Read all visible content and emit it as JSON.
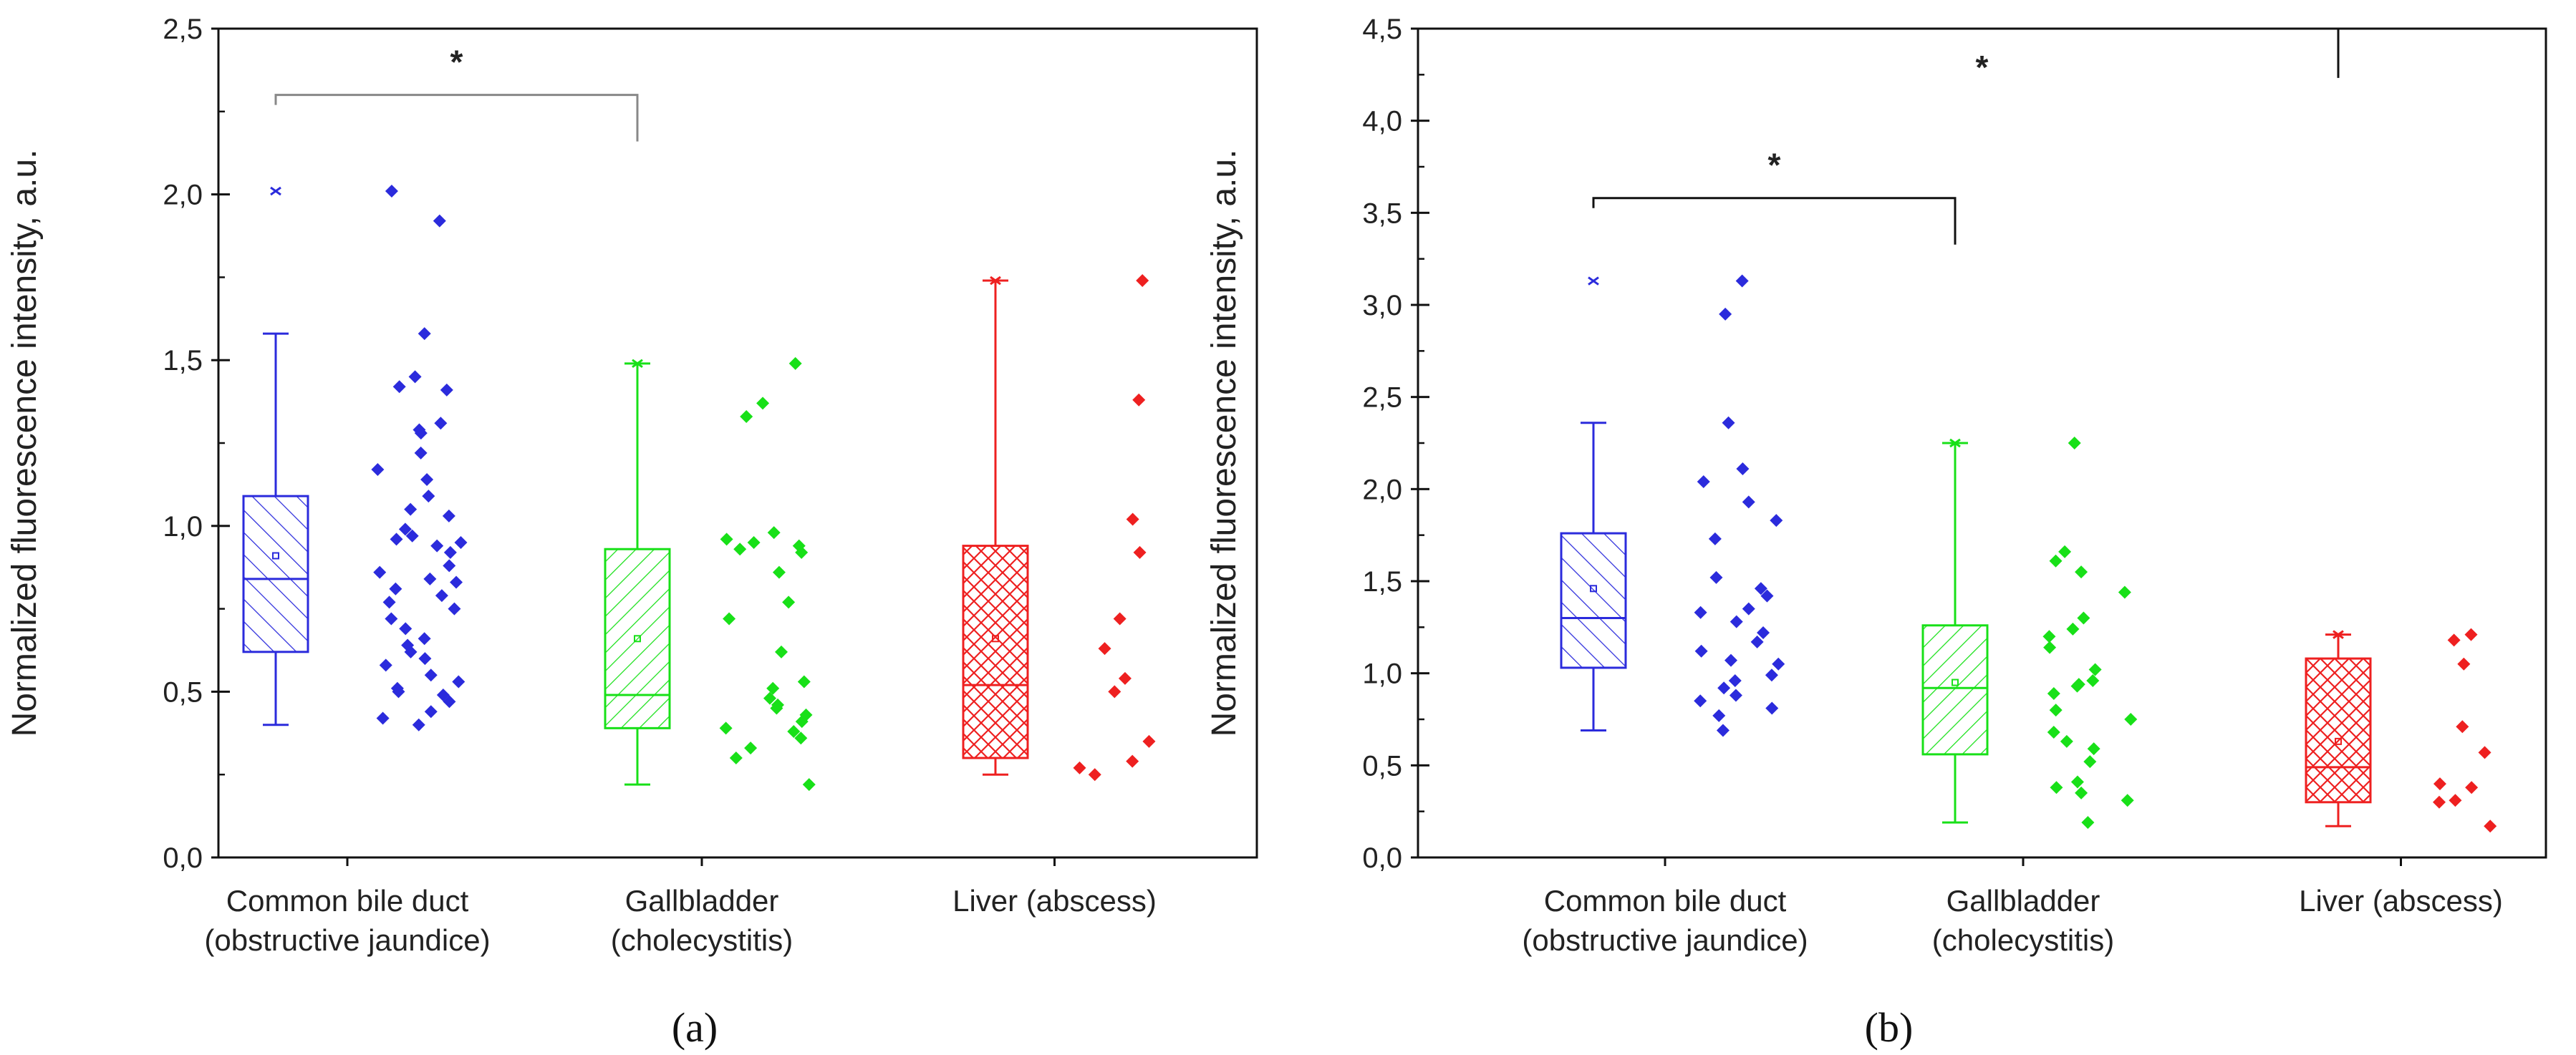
{
  "chart_data": [
    {
      "id": "a",
      "type": "box",
      "panel_label": "(a)",
      "ylabel": "Normalized fluorescence intensity, a.u.",
      "ylim": [
        0,
        2.5
      ],
      "ytick_values": [
        0,
        0.5,
        1.0,
        1.5,
        2.0,
        2.5
      ],
      "ytick_labels": [
        "0,0",
        "0,5",
        "1,0",
        "1,5",
        "2,0",
        "2,5"
      ],
      "groups": [
        {
          "name": "Common bile duct",
          "sub": "(obstructive jaundice)",
          "color": "#2b2bdc",
          "pattern": "diag",
          "q1": 0.62,
          "median": 0.84,
          "q3": 1.09,
          "mean": 0.91,
          "whisker_low": 0.4,
          "whisker_high": 1.58,
          "max": 2.01,
          "points": [
            2.01,
            1.92,
            1.58,
            1.45,
            1.42,
            1.41,
            1.31,
            1.29,
            1.28,
            1.22,
            1.17,
            1.14,
            1.09,
            1.05,
            1.03,
            0.99,
            0.97,
            0.96,
            0.95,
            0.94,
            0.92,
            0.88,
            0.86,
            0.84,
            0.83,
            0.81,
            0.79,
            0.77,
            0.75,
            0.72,
            0.69,
            0.66,
            0.64,
            0.62,
            0.6,
            0.58,
            0.55,
            0.53,
            0.51,
            0.5,
            0.49,
            0.47,
            0.44,
            0.42,
            0.4
          ]
        },
        {
          "name": "Gallbladder",
          "sub": "(cholecystitis)",
          "color": "#18e018",
          "pattern": "diag2",
          "q1": 0.39,
          "median": 0.49,
          "q3": 0.93,
          "mean": 0.66,
          "whisker_low": 0.22,
          "whisker_high": 1.49,
          "max": 1.49,
          "points": [
            1.49,
            1.37,
            1.33,
            0.98,
            0.96,
            0.95,
            0.94,
            0.93,
            0.92,
            0.86,
            0.77,
            0.72,
            0.62,
            0.53,
            0.51,
            0.48,
            0.46,
            0.45,
            0.43,
            0.41,
            0.39,
            0.38,
            0.36,
            0.33,
            0.3,
            0.22
          ]
        },
        {
          "name": "Liver (abscess)",
          "sub": "",
          "color": "#ee2020",
          "pattern": "cross",
          "q1": 0.3,
          "median": 0.52,
          "q3": 0.94,
          "mean": 0.66,
          "whisker_low": 0.25,
          "whisker_high": 1.74,
          "max": 1.74,
          "points": [
            1.74,
            1.38,
            1.02,
            0.92,
            0.72,
            0.63,
            0.54,
            0.5,
            0.35,
            0.29,
            0.27,
            0.25
          ]
        }
      ],
      "significance": [
        {
          "label": "*",
          "from_group": 0,
          "to_group": 1,
          "y": 2.3
        }
      ]
    },
    {
      "id": "b",
      "type": "box",
      "panel_label": "(b)",
      "ylabel": "Normalized fluorescence intensity, a.u.",
      "ylim": [
        0,
        4.5
      ],
      "ytick_values": [
        0,
        0.5,
        1.0,
        1.5,
        2.0,
        2.5,
        3.0,
        3.5,
        4.0,
        4.5
      ],
      "ytick_labels": [
        "0,0",
        "0,5",
        "1,0",
        "1,5",
        "2,0",
        "2,5",
        "3,0",
        "3,5",
        "4,0",
        "4,5"
      ],
      "groups": [
        {
          "name": "Common bile duct",
          "sub": "(obstructive jaundice)",
          "color": "#2b2bdc",
          "pattern": "diag",
          "q1": 1.03,
          "median": 1.3,
          "q3": 1.76,
          "mean": 1.46,
          "whisker_low": 0.69,
          "whisker_high": 2.36,
          "max": 3.13,
          "points": [
            3.13,
            2.95,
            2.36,
            2.11,
            2.04,
            1.93,
            1.83,
            1.73,
            1.52,
            1.46,
            1.42,
            1.35,
            1.33,
            1.28,
            1.22,
            1.17,
            1.12,
            1.07,
            1.05,
            0.99,
            0.96,
            0.92,
            0.88,
            0.85,
            0.81,
            0.77,
            0.69
          ]
        },
        {
          "name": "Gallbladder",
          "sub": "(cholecystitis)",
          "color": "#18e018",
          "pattern": "diag2",
          "q1": 0.56,
          "median": 0.92,
          "q3": 1.26,
          "mean": 0.95,
          "whisker_low": 0.19,
          "whisker_high": 2.25,
          "max": 2.25,
          "points": [
            2.25,
            1.66,
            1.61,
            1.55,
            1.44,
            1.3,
            1.24,
            1.2,
            1.14,
            1.02,
            0.96,
            0.94,
            0.93,
            0.89,
            0.8,
            0.75,
            0.68,
            0.63,
            0.59,
            0.52,
            0.41,
            0.38,
            0.35,
            0.31,
            0.19
          ]
        },
        {
          "name": "Liver (abscess)",
          "sub": "",
          "color": "#ee2020",
          "pattern": "cross",
          "q1": 0.3,
          "median": 0.49,
          "q3": 1.08,
          "mean": 0.63,
          "whisker_low": 0.17,
          "whisker_high": 1.21,
          "max": 1.21,
          "points": [
            1.21,
            1.18,
            1.05,
            0.71,
            0.57,
            0.4,
            0.38,
            0.31,
            0.3,
            0.17
          ]
        }
      ],
      "significance": [
        {
          "label": "*",
          "from_group": 0,
          "to_group": 1,
          "y": 3.58
        },
        {
          "label": "*",
          "from_group": 0,
          "to_group": 2,
          "y": 4.38
        }
      ]
    }
  ]
}
